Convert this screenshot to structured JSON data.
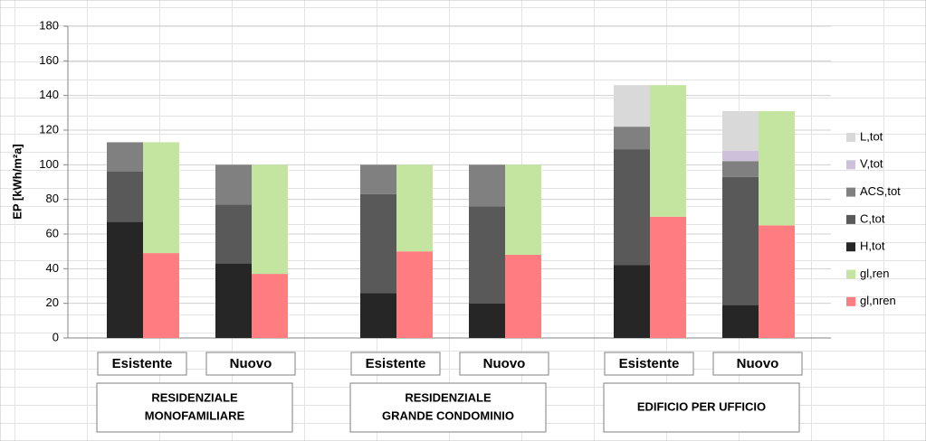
{
  "chart_data": {
    "type": "bar",
    "stacked": true,
    "y_label": "EP [kWh/m²a]",
    "ylim": [
      0,
      180
    ],
    "yticks": [
      0,
      20,
      40,
      60,
      80,
      100,
      120,
      140,
      160,
      180
    ],
    "grid": true,
    "legend": "right",
    "categories": [
      "Esistente",
      "Nuovo",
      "Esistente",
      "Nuovo",
      "Esistente",
      "Nuovo"
    ],
    "groups": [
      {
        "lines": [
          "RESIDENZIALE",
          "MONOFAMILIARE"
        ]
      },
      {
        "lines": [
          "RESIDENZIALE",
          "GRANDE CONDOMINIO"
        ]
      },
      {
        "lines": [
          "EDIFICIO PER UFFICIO"
        ]
      }
    ],
    "series": [
      {
        "name": "L,tot",
        "color": "#d9d9d9",
        "stack": "left",
        "values": [
          0,
          0,
          0,
          0,
          24,
          23
        ]
      },
      {
        "name": "V,tot",
        "color": "#ccc0da",
        "stack": "left",
        "values": [
          0,
          0,
          0,
          0,
          0,
          6
        ]
      },
      {
        "name": "ACS,tot",
        "color": "#808080",
        "stack": "left",
        "values": [
          17,
          23,
          17,
          24,
          13,
          9
        ]
      },
      {
        "name": "C,tot",
        "color": "#595959",
        "stack": "left",
        "values": [
          29,
          34,
          57,
          56,
          67,
          74
        ]
      },
      {
        "name": "H,tot",
        "color": "#262626",
        "stack": "left",
        "values": [
          67,
          43,
          26,
          20,
          42,
          19
        ]
      },
      {
        "name": "gl,ren",
        "color": "#c4e59f",
        "stack": "right",
        "values": [
          64,
          63,
          50,
          52,
          76,
          66
        ]
      },
      {
        "name": "gl,nren",
        "color": "#ff7c80",
        "stack": "right",
        "values": [
          49,
          37,
          50,
          48,
          70,
          65
        ]
      }
    ]
  }
}
